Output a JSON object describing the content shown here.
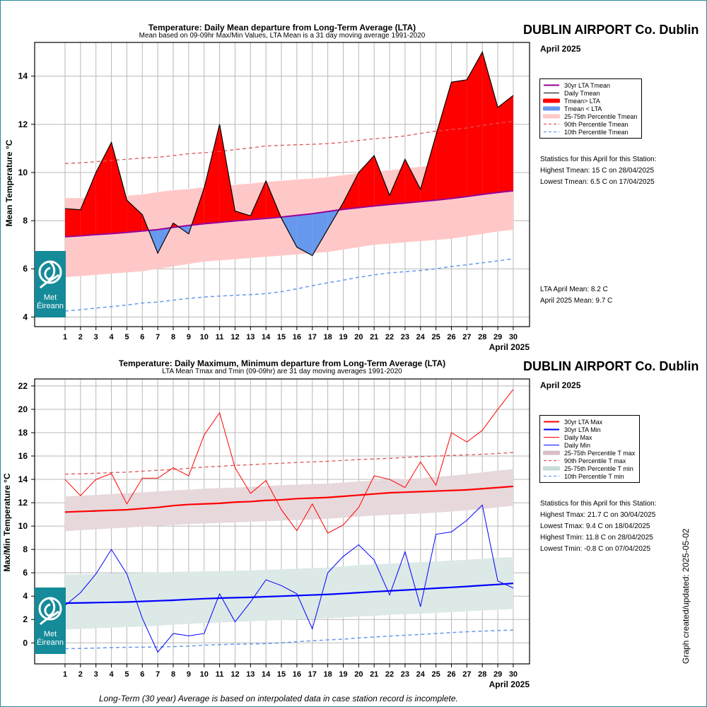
{
  "station": "DUBLIN AIRPORT Co. Dublin",
  "month_label": "April 2025",
  "created_label": "Graph created/updated:  2025-05-02",
  "footer": "Long-Term (30 year) Average is based on interpolated data in case station record is incomplete.",
  "logo": {
    "line1": "Met",
    "line2": "Éireann"
  },
  "colors": {
    "red": "#ff0000",
    "blue": "#0000ff",
    "purple": "#990099",
    "pink_band": "#ffc8c8",
    "light_blue": "#6699ee",
    "mauve_band": "#e7d8dc",
    "teal_band": "#dce9e7",
    "brand": "#158a98"
  },
  "chart_data": [
    {
      "type": "area",
      "title": "Temperature: Daily Mean departure from Long-Term Average (LTA)",
      "subtitle": "Mean based on 09-09hr Max/Min Values, LTA Mean is a 31 day moving average 1991-2020",
      "ylabel": "Mean Temperature °C",
      "xlabel": "April 2025",
      "ylim": [
        3.6,
        15.4
      ],
      "yticks": [
        "4",
        "6",
        "8",
        "10",
        "12",
        "14"
      ],
      "x": [
        1,
        2,
        3,
        4,
        5,
        6,
        7,
        8,
        9,
        10,
        11,
        12,
        13,
        14,
        15,
        16,
        17,
        18,
        19,
        20,
        21,
        22,
        23,
        24,
        25,
        26,
        27,
        28,
        29,
        30
      ],
      "grid": true,
      "series": [
        {
          "name": "30yr LTA Tmean",
          "values": [
            7.33,
            7.37,
            7.42,
            7.46,
            7.51,
            7.57,
            7.63,
            7.72,
            7.8,
            7.87,
            7.93,
            7.99,
            8.04,
            8.09,
            8.15,
            8.22,
            8.29,
            8.38,
            8.47,
            8.54,
            8.61,
            8.67,
            8.73,
            8.79,
            8.85,
            8.92,
            9.0,
            9.09,
            9.17,
            9.24
          ]
        },
        {
          "name": "Daily Tmean",
          "values": [
            8.5,
            8.45,
            10.0,
            11.25,
            8.85,
            8.25,
            6.65,
            7.9,
            7.45,
            9.35,
            12.0,
            8.4,
            8.2,
            9.65,
            8.1,
            6.9,
            6.55,
            7.65,
            8.75,
            10.0,
            10.7,
            9.05,
            10.55,
            9.3,
            11.55,
            13.75,
            13.85,
            15.0,
            12.7,
            13.2
          ]
        },
        {
          "name": "25th Percentile Tmean",
          "values": [
            5.65,
            5.7,
            5.75,
            5.8,
            5.85,
            5.9,
            6.0,
            6.1,
            6.2,
            6.3,
            6.35,
            6.4,
            6.45,
            6.5,
            6.55,
            6.6,
            6.65,
            6.7,
            6.8,
            6.9,
            7.0,
            7.05,
            7.1,
            7.15,
            7.2,
            7.25,
            7.35,
            7.45,
            7.55,
            7.62
          ]
        },
        {
          "name": "75th Percentile Tmean",
          "values": [
            8.95,
            8.95,
            8.97,
            9.0,
            9.05,
            9.1,
            9.2,
            9.28,
            9.32,
            9.4,
            9.45,
            9.5,
            9.55,
            9.62,
            9.67,
            9.72,
            9.76,
            9.82,
            9.9,
            9.98,
            10.05,
            10.1,
            10.18,
            10.25,
            10.33,
            10.4,
            10.5,
            10.6,
            10.75,
            10.85
          ]
        },
        {
          "name": "90th Percentile Tmean",
          "values": [
            10.37,
            10.4,
            10.45,
            10.5,
            10.55,
            10.6,
            10.63,
            10.7,
            10.78,
            10.82,
            10.87,
            10.95,
            11.02,
            11.1,
            11.13,
            11.15,
            11.17,
            11.2,
            11.25,
            11.33,
            11.4,
            11.45,
            11.52,
            11.62,
            11.72,
            11.78,
            11.85,
            11.95,
            12.05,
            12.12
          ]
        },
        {
          "name": "10th Percentile Tmean",
          "values": [
            4.25,
            4.3,
            4.37,
            4.43,
            4.5,
            4.58,
            4.62,
            4.7,
            4.77,
            4.83,
            4.87,
            4.9,
            4.93,
            4.97,
            5.05,
            5.17,
            5.3,
            5.42,
            5.53,
            5.65,
            5.75,
            5.83,
            5.88,
            5.93,
            6.0,
            6.1,
            6.17,
            6.25,
            6.33,
            6.42
          ]
        }
      ],
      "legend": [
        {
          "label": "30yr LTA Tmean",
          "style": "purple-line"
        },
        {
          "label": "Daily Tmean",
          "style": "black-thin"
        },
        {
          "label": "Tmean> LTA",
          "style": "red-thick"
        },
        {
          "label": "Tmean < LTA",
          "style": "blue-thick"
        },
        {
          "label": "25-75th Percentile Tmean",
          "style": "pink-band"
        },
        {
          "label": "90th Percentile Tmean",
          "style": "red-dash"
        },
        {
          "label": "10th Percentile Tmean",
          "style": "blue-dash"
        }
      ],
      "stats": [
        "Statistics for this April for this Station:",
        "Highest Tmean: 15 C on 28/04/2025",
        "Lowest Tmean: 6.5 C on 17/04/2025"
      ],
      "means": [
        "LTA April Mean: 8.2 C",
        "April 2025 Mean: 9.7 C"
      ]
    },
    {
      "type": "line",
      "title": "Temperature: Daily Maximum, Minimum departure from Long-Term Average (LTA)",
      "subtitle": "LTA Mean Tmax and Tmin (09-09hr) are 31 day moving averages 1991-2020",
      "ylabel": "Max/Min Temperature °C",
      "xlabel": "April 2025",
      "ylim": [
        -1.8,
        22.6
      ],
      "yticks": [
        "0",
        "2",
        "4",
        "6",
        "8",
        "10",
        "12",
        "14",
        "16",
        "18",
        "20",
        "22"
      ],
      "x": [
        1,
        2,
        3,
        4,
        5,
        6,
        7,
        8,
        9,
        10,
        11,
        12,
        13,
        14,
        15,
        16,
        17,
        18,
        19,
        20,
        21,
        22,
        23,
        24,
        25,
        26,
        27,
        28,
        29,
        30
      ],
      "grid": true,
      "series": [
        {
          "name": "30yr LTA Max",
          "values": [
            11.2,
            11.25,
            11.3,
            11.35,
            11.4,
            11.5,
            11.6,
            11.75,
            11.85,
            11.9,
            11.95,
            12.05,
            12.1,
            12.2,
            12.25,
            12.35,
            12.4,
            12.45,
            12.55,
            12.65,
            12.75,
            12.85,
            12.9,
            12.95,
            13.0,
            13.05,
            13.1,
            13.2,
            13.3,
            13.4
          ]
        },
        {
          "name": "30yr LTA Min",
          "values": [
            3.4,
            3.42,
            3.45,
            3.47,
            3.5,
            3.55,
            3.6,
            3.65,
            3.72,
            3.78,
            3.83,
            3.87,
            3.9,
            3.95,
            4.0,
            4.05,
            4.1,
            4.15,
            4.22,
            4.3,
            4.38,
            4.45,
            4.52,
            4.6,
            4.68,
            4.75,
            4.83,
            4.92,
            5.0,
            5.1
          ]
        },
        {
          "name": "Daily Max",
          "values": [
            14.0,
            12.6,
            14.0,
            14.5,
            11.9,
            14.1,
            14.1,
            15.0,
            14.3,
            17.8,
            19.7,
            15.0,
            12.8,
            13.9,
            11.4,
            9.6,
            11.9,
            9.4,
            10.1,
            11.6,
            14.3,
            14.0,
            13.3,
            15.5,
            13.5,
            18.0,
            17.2,
            18.2,
            20.0,
            21.7
          ]
        },
        {
          "name": "Daily Min",
          "values": [
            3.2,
            4.3,
            5.9,
            8.0,
            5.9,
            2.1,
            -0.8,
            0.8,
            0.6,
            0.8,
            4.2,
            1.8,
            3.5,
            5.4,
            4.9,
            4.2,
            1.2,
            6.0,
            7.4,
            8.4,
            7.1,
            4.1,
            7.8,
            3.1,
            9.3,
            9.5,
            10.5,
            11.8,
            5.3,
            4.7
          ]
        },
        {
          "name": "25th Percentile T max",
          "values": [
            9.55,
            9.65,
            9.72,
            9.8,
            9.87,
            9.95,
            10.02,
            10.1,
            10.17,
            10.22,
            10.27,
            10.32,
            10.37,
            10.42,
            10.47,
            10.52,
            10.57,
            10.62,
            10.72,
            10.82,
            10.9,
            10.97,
            11.02,
            11.08,
            11.15,
            11.25,
            11.35,
            11.45,
            11.6,
            11.75
          ]
        },
        {
          "name": "75th Percentile T max",
          "values": [
            12.55,
            12.6,
            12.67,
            12.75,
            12.82,
            12.9,
            12.97,
            13.05,
            13.12,
            13.2,
            13.25,
            13.3,
            13.37,
            13.43,
            13.5,
            13.55,
            13.6,
            13.65,
            13.73,
            13.82,
            13.9,
            13.97,
            14.03,
            14.1,
            14.2,
            14.32,
            14.45,
            14.6,
            14.75,
            14.88
          ]
        },
        {
          "name": "25th Percentile T min",
          "values": [
            1.15,
            1.2,
            1.25,
            1.3,
            1.35,
            1.4,
            1.47,
            1.55,
            1.62,
            1.7,
            1.75,
            1.8,
            1.85,
            1.9,
            1.95,
            2.0,
            2.05,
            2.1,
            2.17,
            2.25,
            2.32,
            2.4,
            2.45,
            2.5,
            2.57,
            2.63,
            2.7,
            2.77,
            2.83,
            2.9
          ]
        },
        {
          "name": "75th Percentile T min",
          "values": [
            5.85,
            5.87,
            5.9,
            5.95,
            5.98,
            6.0,
            6.03,
            6.07,
            6.1,
            6.12,
            6.15,
            6.18,
            6.2,
            6.25,
            6.3,
            6.35,
            6.4,
            6.45,
            6.55,
            6.65,
            6.72,
            6.78,
            6.85,
            6.9,
            6.97,
            7.05,
            7.12,
            7.2,
            7.28,
            7.35
          ]
        },
        {
          "name": "90th Percentile T max",
          "values": [
            14.45,
            14.48,
            14.52,
            14.58,
            14.62,
            14.7,
            14.78,
            14.85,
            14.95,
            15.05,
            15.12,
            15.2,
            15.25,
            15.33,
            15.38,
            15.45,
            15.5,
            15.55,
            15.62,
            15.7,
            15.75,
            15.8,
            15.88,
            15.95,
            16.0,
            16.05,
            16.1,
            16.15,
            16.22,
            16.3
          ]
        },
        {
          "name": "10th Percentile T min",
          "values": [
            -0.5,
            -0.48,
            -0.45,
            -0.4,
            -0.38,
            -0.37,
            -0.35,
            -0.32,
            -0.28,
            -0.2,
            -0.15,
            -0.12,
            -0.1,
            -0.07,
            0.0,
            0.1,
            0.18,
            0.25,
            0.32,
            0.42,
            0.5,
            0.58,
            0.65,
            0.72,
            0.8,
            0.88,
            0.95,
            1.0,
            1.05,
            1.1
          ]
        }
      ],
      "legend": [
        {
          "label": "30yr LTA Max",
          "style": "red-line"
        },
        {
          "label": "30yr LTA Min",
          "style": "blue-line"
        },
        {
          "label": "Daily Max",
          "style": "red-thin"
        },
        {
          "label": "Daily Min",
          "style": "blue-thin"
        },
        {
          "label": "25-75th Percentile T max",
          "style": "mauve-band"
        },
        {
          "label": "90th Percentile T max",
          "style": "red-dash"
        },
        {
          "label": "25-75th Percentile T min",
          "style": "teal-band"
        },
        {
          "label": "10th Percentile T min",
          "style": "blue-dash"
        }
      ],
      "stats": [
        "Statistics for this April for this Station:",
        "Highest Tmax: 21.7 C on 30/04/2025",
        "Lowest Tmax: 9.4 C on 18/04/2025",
        "Highest Tmin: 11.8 C on 28/04/2025",
        "Lowest Tmin: -0.8 C on 07/04/2025"
      ]
    }
  ]
}
